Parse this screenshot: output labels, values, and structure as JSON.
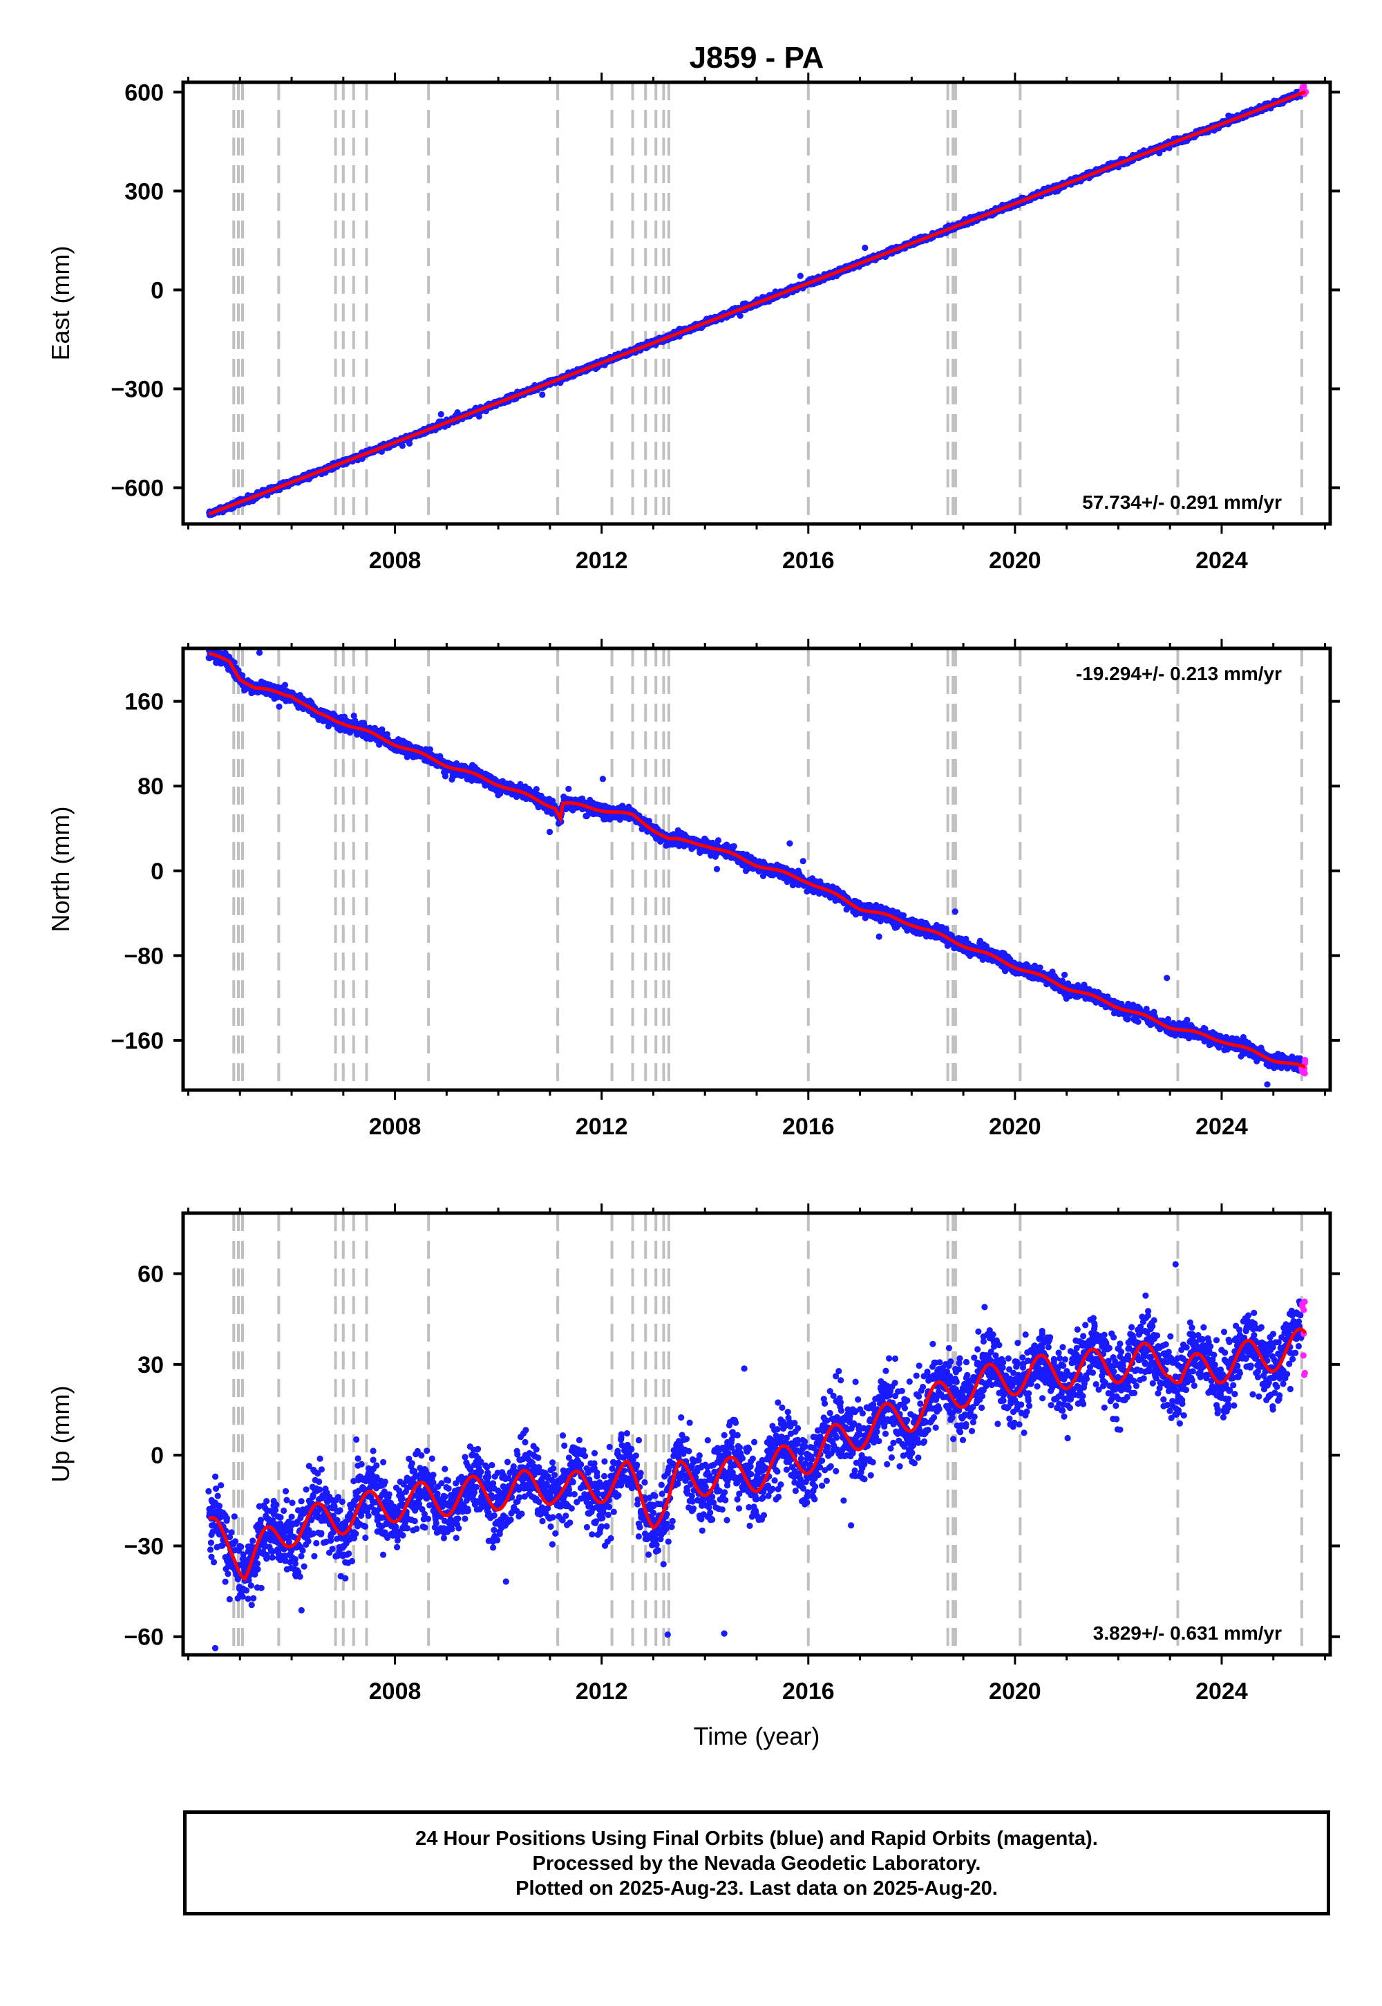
{
  "page": {
    "title": "J859 - PA"
  },
  "colors": {
    "final_orbits": "#1a1aff",
    "rapid_orbits": "#ff22ff",
    "model": "#ff0000",
    "event_lines": "#c0c0c0"
  },
  "chart_data": [
    {
      "type": "scatter",
      "component": "East",
      "ylabel": "East (mm)",
      "xlabel": "",
      "xlim": [
        2003.9,
        2026.1
      ],
      "ylim": [
        -710,
        630
      ],
      "yticks": [
        600,
        300,
        0,
        -300,
        -600
      ],
      "ytick_labels": [
        "600",
        "300",
        "0",
        "−300",
        "−600"
      ],
      "xticks": [
        2008,
        2012,
        2016,
        2020,
        2024
      ],
      "xtick_labels": [
        "2008",
        "2012",
        "2016",
        "2020",
        "2024"
      ],
      "rate_label": "57.734+/- 0.291 mm/yr",
      "rate_position": "bottom-right",
      "trend": {
        "start": [
          2004.4,
          -680
        ],
        "end": [
          2025.6,
          600
        ]
      },
      "scatter_noise": 4,
      "annual_amplitude": 0,
      "series": [
        {
          "name": "Final Orbits",
          "color": "#1a1aff",
          "x_range": [
            2004.4,
            2025.55
          ]
        },
        {
          "name": "Rapid Orbits",
          "color": "#ff22ff",
          "x_range": [
            2025.55,
            2025.63
          ]
        }
      ]
    },
    {
      "type": "scatter",
      "component": "North",
      "ylabel": "North (mm)",
      "xlabel": "",
      "xlim": [
        2003.9,
        2026.1
      ],
      "ylim": [
        -207,
        210
      ],
      "yticks": [
        160,
        80,
        0,
        -80,
        -160
      ],
      "ytick_labels": [
        "160",
        "80",
        "0",
        "−80",
        "−160"
      ],
      "xticks": [
        2008,
        2012,
        2016,
        2020,
        2024
      ],
      "xtick_labels": [
        "2008",
        "2012",
        "2016",
        "2020",
        "2024"
      ],
      "rate_label": "-19.294+/- 0.213 mm/yr",
      "rate_position": "top-right",
      "trend_points": [
        [
          2004.4,
          204
        ],
        [
          2004.8,
          198
        ],
        [
          2005.0,
          182
        ],
        [
          2005.3,
          172
        ],
        [
          2006.0,
          166
        ],
        [
          2006.5,
          148
        ],
        [
          2007.0,
          140
        ],
        [
          2008.0,
          120
        ],
        [
          2009.0,
          100
        ],
        [
          2010.0,
          82
        ],
        [
          2011.1,
          60
        ],
        [
          2011.2,
          50
        ],
        [
          2011.25,
          64
        ],
        [
          2012.0,
          58
        ],
        [
          2012.6,
          52
        ],
        [
          2013.3,
          30
        ],
        [
          2014.0,
          25
        ],
        [
          2015.0,
          6
        ],
        [
          2016.0,
          -10
        ],
        [
          2017.0,
          -35
        ],
        [
          2018.0,
          -50
        ],
        [
          2019.0,
          -70
        ],
        [
          2020.0,
          -90
        ],
        [
          2021.0,
          -110
        ],
        [
          2022.0,
          -128
        ],
        [
          2023.0,
          -147
        ],
        [
          2024.0,
          -160
        ],
        [
          2025.0,
          -178
        ],
        [
          2025.6,
          -186
        ]
      ],
      "scatter_noise": 3,
      "annual_amplitude": 1.5,
      "series": [
        {
          "name": "Final Orbits",
          "color": "#1a1aff",
          "x_range": [
            2004.4,
            2025.55
          ]
        },
        {
          "name": "Rapid Orbits",
          "color": "#ff22ff",
          "x_range": [
            2025.55,
            2025.63
          ]
        }
      ]
    },
    {
      "type": "scatter",
      "component": "Up",
      "ylabel": "Up (mm)",
      "xlabel": "Time (year)",
      "xlim": [
        2003.9,
        2026.1
      ],
      "ylim": [
        -66,
        80
      ],
      "yticks": [
        60,
        30,
        0,
        -30,
        -60
      ],
      "ytick_labels": [
        "60",
        "30",
        "0",
        "−30",
        "−60"
      ],
      "xticks": [
        2008,
        2012,
        2016,
        2020,
        2024
      ],
      "xtick_labels": [
        "2008",
        "2012",
        "2016",
        "2020",
        "2024"
      ],
      "rate_label": "3.829+/- 0.631 mm/yr",
      "rate_position": "bottom-right",
      "trend_points": [
        [
          2004.4,
          -26
        ],
        [
          2004.9,
          -30
        ],
        [
          2005.1,
          -36
        ],
        [
          2005.5,
          -30
        ],
        [
          2006.0,
          -24
        ],
        [
          2007.0,
          -20
        ],
        [
          2008.0,
          -16
        ],
        [
          2009.0,
          -14
        ],
        [
          2010.0,
          -12
        ],
        [
          2011.1,
          -10
        ],
        [
          2011.3,
          -12
        ],
        [
          2012.5,
          -8
        ],
        [
          2013.0,
          -18
        ],
        [
          2013.3,
          -16
        ],
        [
          2013.5,
          -8
        ],
        [
          2015.0,
          -6
        ],
        [
          2016.0,
          0
        ],
        [
          2017.0,
          8
        ],
        [
          2018.0,
          14
        ],
        [
          2019.0,
          22
        ],
        [
          2020.0,
          26
        ],
        [
          2021.0,
          28
        ],
        [
          2022.0,
          30
        ],
        [
          2023.0,
          32
        ],
        [
          2023.2,
          26
        ],
        [
          2024.0,
          30
        ],
        [
          2025.6,
          36
        ]
      ],
      "scatter_noise": 6,
      "annual_amplitude": 6,
      "series": [
        {
          "name": "Final Orbits",
          "color": "#1a1aff",
          "x_range": [
            2004.4,
            2025.55
          ]
        },
        {
          "name": "Rapid Orbits",
          "color": "#ff22ff",
          "x_range": [
            2025.55,
            2025.63
          ]
        }
      ]
    }
  ],
  "event_lines": [
    2004.88,
    2004.97,
    2005.05,
    2005.75,
    2006.85,
    2007.0,
    2007.2,
    2007.45,
    2008.65,
    2011.15,
    2012.2,
    2012.6,
    2012.85,
    2013.05,
    2013.2,
    2013.3,
    2016.0,
    2018.7,
    2018.8,
    2018.85,
    2020.1,
    2023.15,
    2025.55
  ],
  "footer": {
    "line1": "24 Hour Positions Using Final Orbits (blue) and Rapid Orbits (magenta).",
    "line2": "Processed by the Nevada Geodetic Laboratory.",
    "line3": "Plotted on 2025-Aug-23. Last data on 2025-Aug-20."
  }
}
